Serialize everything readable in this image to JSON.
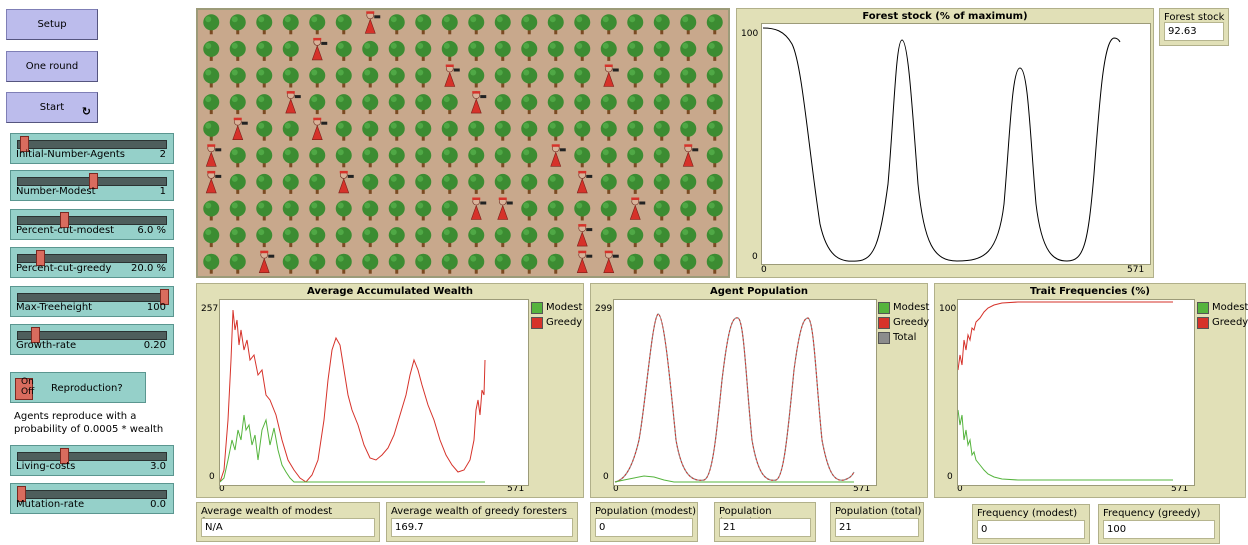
{
  "buttons": {
    "setup": "Setup",
    "one_round": "One round",
    "start": "Start",
    "forever_icon": "↻"
  },
  "sliders": [
    {
      "label": "Initial-Number-Agents",
      "value": "2",
      "level": 0.02
    },
    {
      "label": "Number-Modest",
      "value": "1",
      "level": 0.5
    },
    {
      "label": "Percent-cut-modest",
      "value": "6.0 %",
      "level": 0.3
    },
    {
      "label": "Percent-cut-greedy",
      "value": "20.0 %",
      "level": 0.13
    },
    {
      "label": "Max-Treeheight",
      "value": "100",
      "level": 1.0
    },
    {
      "label": "Growth-rate",
      "value": "0.20",
      "level": 0.1
    },
    {
      "label": "Living-costs",
      "value": "3.0",
      "level": 0.3
    },
    {
      "label": "Mutation-rate",
      "value": "0.0",
      "level": 0.0
    }
  ],
  "switch": {
    "on": "On",
    "off": "Off",
    "label": "Reproduction?",
    "state": "on"
  },
  "note": "Agents reproduce with a probability of 0.0005 * wealth",
  "colors": {
    "modest": "#55b43d",
    "greedy": "#d6322a",
    "total": "#8c8c8c",
    "tree": "#3c8c32",
    "trunk": "#7a4a22",
    "ground": "#c8a88c"
  },
  "world": {
    "cols": 20,
    "rows": 9,
    "foresters": [
      [
        6,
        0
      ],
      [
        4,
        1
      ],
      [
        9,
        2
      ],
      [
        15,
        2
      ],
      [
        3,
        3
      ],
      [
        10,
        3
      ],
      [
        1,
        4
      ],
      [
        4,
        4
      ],
      [
        0,
        5
      ],
      [
        13,
        5
      ],
      [
        18,
        5
      ],
      [
        0,
        6
      ],
      [
        5,
        6
      ],
      [
        14,
        6
      ],
      [
        10,
        7
      ],
      [
        11,
        7
      ],
      [
        16,
        7
      ],
      [
        14,
        8
      ],
      [
        2,
        9
      ],
      [
        14,
        9
      ],
      [
        15,
        9
      ]
    ]
  },
  "charts": {
    "forest": {
      "title": "Forest stock (% of maximum)",
      "y_max_label": "100",
      "y_min_label": "0",
      "x_min_label": "0",
      "x_max_label": "571",
      "series": []
    },
    "wealth": {
      "title": "Average Accumulated Wealth",
      "y_max_label": "257",
      "y_min_label": "0",
      "x_min_label": "0",
      "x_max_label": "571",
      "series": [
        {
          "name": "Modest",
          "color": "#55b43d"
        },
        {
          "name": "Greedy",
          "color": "#d6322a"
        }
      ]
    },
    "population": {
      "title": "Agent Population",
      "y_max_label": "299",
      "y_min_label": "0",
      "x_min_label": "0",
      "x_max_label": "571",
      "series": [
        {
          "name": "Modest",
          "color": "#55b43d"
        },
        {
          "name": "Greedy",
          "color": "#d6322a"
        },
        {
          "name": "Total",
          "color": "#8c8c8c"
        }
      ]
    },
    "traits": {
      "title": "Trait Frequencies (%)",
      "y_max_label": "100",
      "y_min_label": "0",
      "x_min_label": "0",
      "x_max_label": "571",
      "series": [
        {
          "name": "Modest",
          "color": "#55b43d"
        },
        {
          "name": "Greedy",
          "color": "#d6322a"
        }
      ]
    }
  },
  "monitors": {
    "forest_stock": {
      "label": "Forest stock",
      "value": "92.63"
    },
    "wealth_modest": {
      "label": "Average wealth of modest foresters",
      "value": "N/A"
    },
    "wealth_greedy": {
      "label": "Average wealth of greedy foresters",
      "value": "169.7"
    },
    "pop_modest": {
      "label": "Population (modest)",
      "value": "0"
    },
    "pop_greedy": {
      "label": "Population (greedy)",
      "value": "21"
    },
    "pop_total": {
      "label": "Population (total)",
      "value": "21"
    },
    "freq_modest": {
      "label": "Frequency (modest)",
      "value": "0"
    },
    "freq_greedy": {
      "label": "Frequency (greedy)",
      "value": "100"
    }
  }
}
